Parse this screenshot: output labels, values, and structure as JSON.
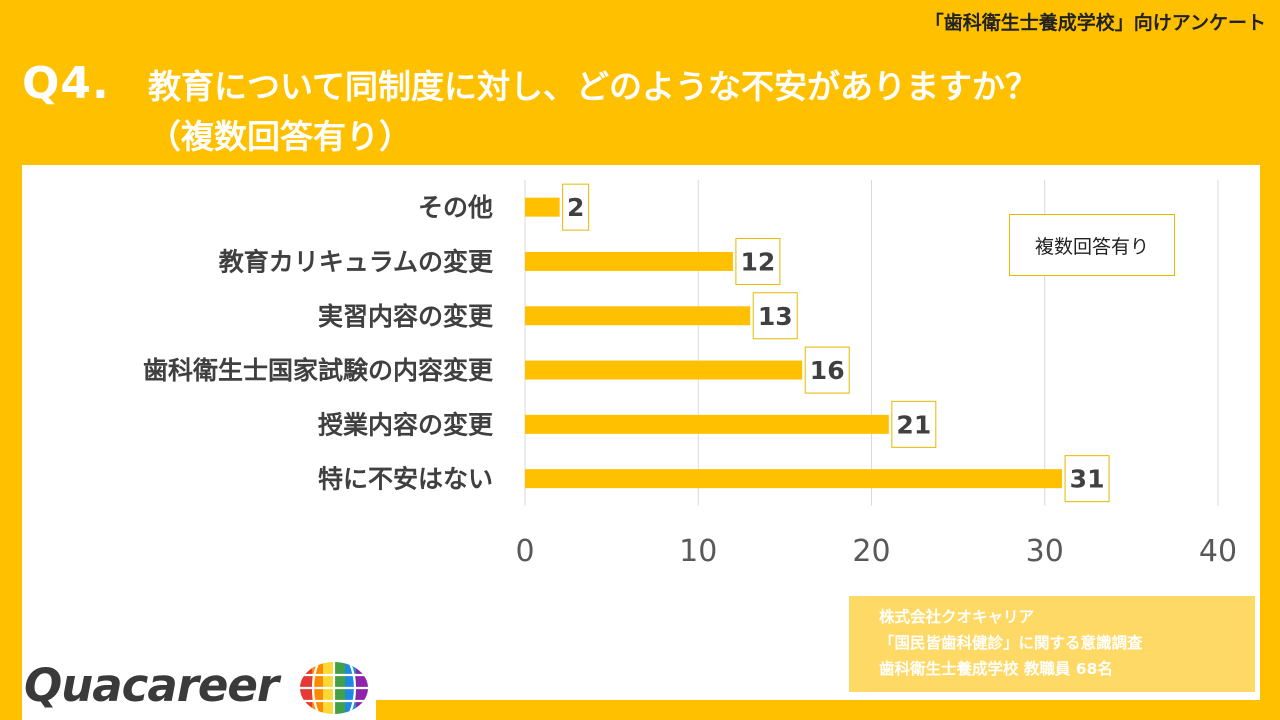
{
  "header": {
    "tag": "「歯科衛生士養成学校」向けアンケート",
    "question_number": "Q4.",
    "question_line1": "教育について同制度に対し、どのような不安がありますか？",
    "question_line2": "（複数回答有り）"
  },
  "note": "複数回答有り",
  "source": {
    "line1": "株式会社クオキャリア",
    "line2": "「国民皆歯科健診」に関する意識調査",
    "line3": "歯科衛生士養成学校 教職員 68名"
  },
  "logo": {
    "text": "Quacareer",
    "icon": "globe-icon"
  },
  "colors": {
    "accent": "#FFC000",
    "bar": "#FFC000",
    "text": "#404040",
    "grid": "#D9D9D9"
  },
  "chart_data": {
    "type": "bar",
    "orientation": "horizontal",
    "categories": [
      "その他",
      "教育カリキュラムの変更",
      "実習内容の変更",
      "歯科衛生士国家試験の内容変更",
      "授業内容の変更",
      "特に不安はない"
    ],
    "values": [
      2,
      12,
      13,
      16,
      21,
      31
    ],
    "xlim": [
      0,
      40
    ],
    "xticks": [
      0,
      10,
      20,
      30,
      40
    ],
    "grid": true
  }
}
